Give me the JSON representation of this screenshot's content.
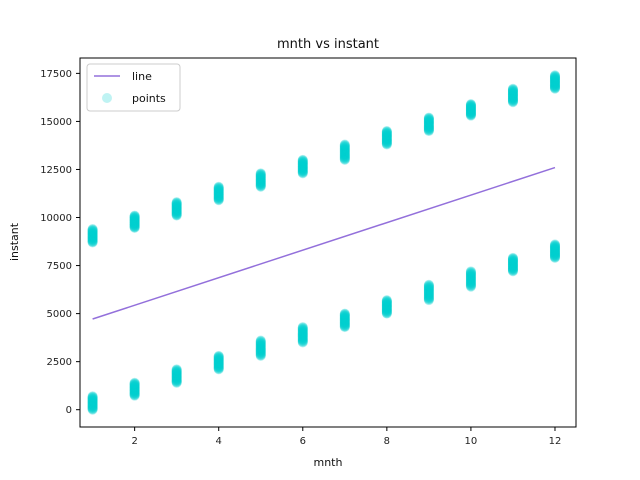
{
  "chart_data": {
    "type": "scatter",
    "title": "mnth vs instant",
    "xlabel": "mnth",
    "ylabel": "instant",
    "xlim": [
      0.7,
      12.5
    ],
    "ylim": [
      -900,
      18300
    ],
    "xticks": [
      2,
      4,
      6,
      8,
      10,
      12
    ],
    "yticks": [
      0,
      2500,
      5000,
      7500,
      10000,
      12500,
      15000,
      17500
    ],
    "legend": {
      "placement": "top-left",
      "entries": [
        "line",
        "points"
      ]
    },
    "colors": {
      "line": "#9370DB",
      "points": "#00CED1"
    },
    "series": [
      {
        "name": "line",
        "kind": "line",
        "x": [
          1,
          12
        ],
        "y": [
          4720,
          12600
        ]
      },
      {
        "name": "points",
        "kind": "points",
        "ranges": [
          {
            "x": 1,
            "y_min": 0,
            "y_max": 700
          },
          {
            "x": 1,
            "y_min": 8700,
            "y_max": 9400
          },
          {
            "x": 2,
            "y_min": 730,
            "y_max": 1400
          },
          {
            "x": 2,
            "y_min": 9460,
            "y_max": 10100
          },
          {
            "x": 3,
            "y_min": 1400,
            "y_max": 2100
          },
          {
            "x": 3,
            "y_min": 10100,
            "y_max": 10800
          },
          {
            "x": 4,
            "y_min": 2100,
            "y_max": 2800
          },
          {
            "x": 4,
            "y_min": 10900,
            "y_max": 11600
          },
          {
            "x": 5,
            "y_min": 2800,
            "y_max": 3600
          },
          {
            "x": 5,
            "y_min": 11600,
            "y_max": 12300
          },
          {
            "x": 6,
            "y_min": 3500,
            "y_max": 4300
          },
          {
            "x": 6,
            "y_min": 12300,
            "y_max": 13000
          },
          {
            "x": 7,
            "y_min": 4300,
            "y_max": 5000
          },
          {
            "x": 7,
            "y_min": 13000,
            "y_max": 13800
          },
          {
            "x": 8,
            "y_min": 5000,
            "y_max": 5700
          },
          {
            "x": 8,
            "y_min": 13800,
            "y_max": 14500
          },
          {
            "x": 9,
            "y_min": 5700,
            "y_max": 6500
          },
          {
            "x": 9,
            "y_min": 14500,
            "y_max": 15200
          },
          {
            "x": 10,
            "y_min": 6400,
            "y_max": 7200
          },
          {
            "x": 10,
            "y_min": 15300,
            "y_max": 15900
          },
          {
            "x": 11,
            "y_min": 7200,
            "y_max": 7900
          },
          {
            "x": 11,
            "y_min": 16000,
            "y_max": 16700
          },
          {
            "x": 12,
            "y_min": 7900,
            "y_max": 8600
          },
          {
            "x": 12,
            "y_min": 16700,
            "y_max": 17400
          }
        ]
      }
    ]
  }
}
